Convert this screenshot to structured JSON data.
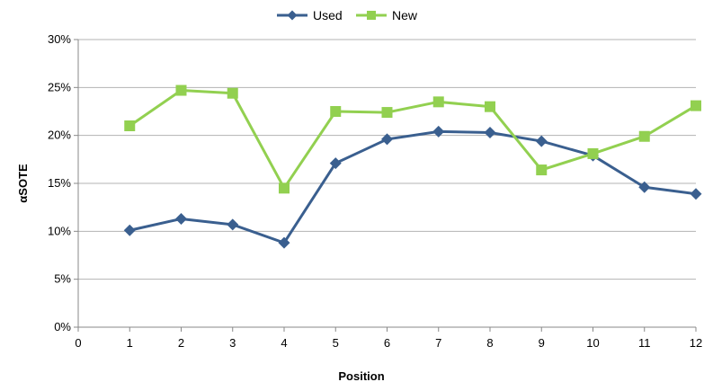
{
  "chart_data": {
    "type": "line",
    "title": "",
    "xlabel": "Position",
    "ylabel": "αSOTE",
    "xlim": [
      0,
      12
    ],
    "ylim": [
      0,
      0.3
    ],
    "x_ticks": [
      "0",
      "1",
      "2",
      "3",
      "4",
      "5",
      "6",
      "7",
      "8",
      "9",
      "10",
      "11",
      "12"
    ],
    "y_ticks": [
      "0%",
      "5%",
      "10%",
      "15%",
      "20%",
      "25%",
      "30%"
    ],
    "grid": "horizontal",
    "legend_position": "top-center",
    "x": [
      1,
      2,
      3,
      4,
      5,
      6,
      7,
      8,
      9,
      10,
      11,
      12
    ],
    "series": [
      {
        "name": "Used",
        "color": "#3a5f8f",
        "marker": "diamond",
        "values": [
          0.101,
          0.113,
          0.107,
          0.088,
          0.171,
          0.196,
          0.204,
          0.203,
          0.194,
          0.179,
          0.146,
          0.139
        ]
      },
      {
        "name": "New",
        "color": "#92d050",
        "marker": "square",
        "values": [
          0.21,
          0.247,
          0.244,
          0.145,
          0.225,
          0.224,
          0.235,
          0.23,
          0.164,
          0.181,
          0.199,
          0.231
        ]
      }
    ]
  }
}
